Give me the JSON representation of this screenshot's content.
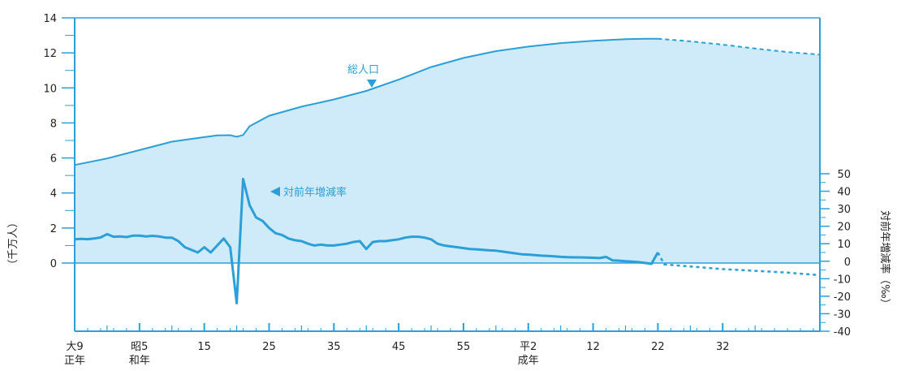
{
  "chart_data": {
    "type": "line",
    "colors": {
      "line": "#2a9fd8",
      "fill": "#cfeaf8",
      "axis": "#2a9fd8",
      "text": "#222222"
    },
    "x_range": [
      1920,
      2035
    ],
    "x_ticks": [
      {
        "x": 1920,
        "line1": "大9",
        "line2": "正年"
      },
      {
        "x": 1930,
        "line1": "昭5",
        "line2": "和年"
      },
      {
        "x": 1940,
        "line1": "15",
        "line2": ""
      },
      {
        "x": 1950,
        "line1": "25",
        "line2": ""
      },
      {
        "x": 1960,
        "line1": "35",
        "line2": ""
      },
      {
        "x": 1970,
        "line1": "45",
        "line2": ""
      },
      {
        "x": 1980,
        "line1": "55",
        "line2": ""
      },
      {
        "x": 1990,
        "line1": "平2",
        "line2": "成年"
      },
      {
        "x": 2000,
        "line1": "12",
        "line2": ""
      },
      {
        "x": 2010,
        "line1": "22",
        "line2": ""
      },
      {
        "x": 2020,
        "line1": "32",
        "line2": ""
      }
    ],
    "left_axis": {
      "label": "（千万人）",
      "range": [
        0,
        14
      ],
      "ticks": [
        "0",
        "2",
        "4",
        "6",
        "8",
        "10",
        "12",
        "14"
      ]
    },
    "right_axis": {
      "label": "対前年増減率（‰）",
      "range": [
        -40,
        50
      ],
      "ticks": [
        "50",
        "40",
        "30",
        "20",
        "10",
        "0",
        "-10",
        "-20",
        "-30",
        "-40"
      ]
    },
    "annotations": [
      {
        "text": "総人口",
        "series": "population"
      },
      {
        "text": "対前年増減率",
        "series": "growth_rate"
      }
    ],
    "series": [
      {
        "id": "population",
        "axis": "left",
        "unit": "千万人",
        "x": [
          1920,
          1925,
          1930,
          1935,
          1940,
          1942,
          1944,
          1945,
          1946,
          1947,
          1950,
          1955,
          1960,
          1965,
          1970,
          1975,
          1980,
          1985,
          1990,
          1995,
          2000,
          2005,
          2008,
          2010
        ],
        "values": [
          5.6,
          5.97,
          6.45,
          6.93,
          7.19,
          7.29,
          7.3,
          7.21,
          7.31,
          7.81,
          8.41,
          8.93,
          9.34,
          9.83,
          10.47,
          11.19,
          11.71,
          12.1,
          12.36,
          12.56,
          12.69,
          12.78,
          12.81,
          12.81
        ],
        "projection_x": [
          2010,
          2015,
          2020,
          2025,
          2030,
          2035
        ],
        "projection_values": [
          12.81,
          12.66,
          12.47,
          12.25,
          12.05,
          11.9
        ]
      },
      {
        "id": "growth_rate",
        "axis": "right",
        "unit": "‰",
        "x": [
          1920,
          1921,
          1922,
          1923,
          1924,
          1925,
          1926,
          1927,
          1928,
          1929,
          1930,
          1931,
          1932,
          1933,
          1934,
          1935,
          1936,
          1937,
          1938,
          1939,
          1940,
          1941,
          1942,
          1943,
          1944,
          1945,
          1946,
          1947,
          1948,
          1949,
          1950,
          1951,
          1952,
          1953,
          1954,
          1955,
          1956,
          1957,
          1958,
          1959,
          1960,
          1961,
          1962,
          1963,
          1964,
          1965,
          1966,
          1967,
          1968,
          1969,
          1970,
          1971,
          1972,
          1973,
          1974,
          1975,
          1976,
          1977,
          1978,
          1979,
          1980,
          1981,
          1982,
          1983,
          1984,
          1985,
          1986,
          1987,
          1988,
          1989,
          1990,
          1991,
          1992,
          1993,
          1994,
          1995,
          1996,
          1997,
          1998,
          1999,
          2000,
          2001,
          2002,
          2003,
          2004,
          2005,
          2006,
          2007,
          2008,
          2009,
          2010
        ],
        "values": [
          12.5,
          12.8,
          12.6,
          13,
          13.6,
          15.5,
          14,
          14.2,
          13.8,
          14.6,
          14.6,
          14.2,
          14.5,
          14.2,
          13.5,
          13.5,
          11.5,
          8,
          6.5,
          5,
          8,
          5,
          9,
          13,
          8,
          -24,
          47,
          32,
          25,
          23,
          19,
          16,
          15,
          13,
          12,
          11.5,
          10,
          9,
          9.5,
          9,
          9,
          9.5,
          10,
          11,
          11.5,
          7,
          11,
          11.5,
          11.5,
          12,
          12.5,
          13.5,
          14,
          14,
          13.5,
          12.5,
          10,
          9,
          8.5,
          8,
          7.5,
          7,
          6.8,
          6.5,
          6.2,
          6,
          5.5,
          5,
          4.5,
          4,
          3.8,
          3.5,
          3.2,
          3,
          2.8,
          2.5,
          2.3,
          2.2,
          2.2,
          2.1,
          2,
          1.8,
          2.5,
          0.5,
          0.3,
          0,
          -0.2,
          -0.5,
          -1,
          -1.5,
          5
        ],
        "projection_x": [
          2010,
          2011,
          2015,
          2020,
          2025,
          2030,
          2035
        ],
        "projection_values": [
          5,
          -1.8,
          -3,
          -4.5,
          -5.5,
          -6.5,
          -8
        ]
      }
    ]
  }
}
